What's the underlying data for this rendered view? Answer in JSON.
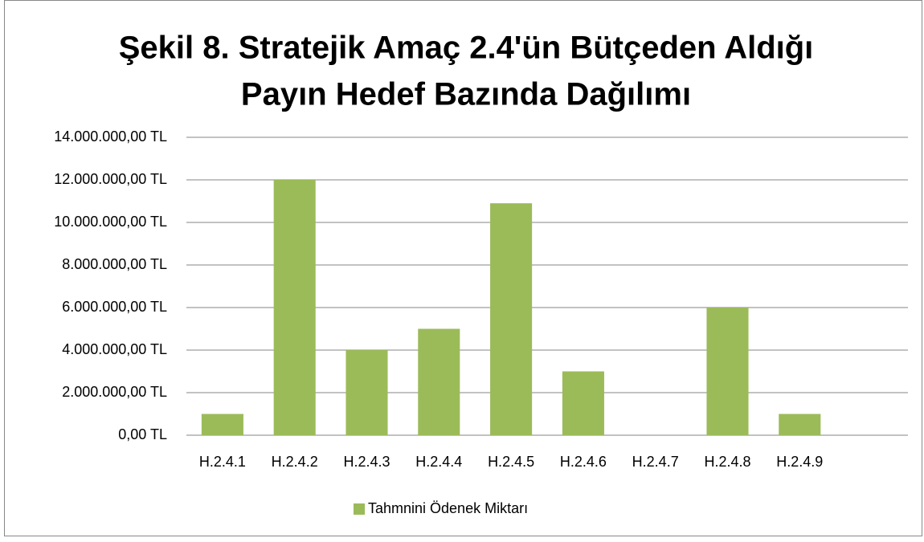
{
  "chart_data": {
    "type": "bar",
    "title": [
      "Şekil 8. Stratejik Amaç 2.4'ün Bütçeden Aldığı",
      "Payın Hedef Bazında Dağılımı"
    ],
    "categories": [
      "H.2.4.1",
      "H.2.4.2",
      "H.2.4.3",
      "H.2.4.4",
      "H.2.4.5",
      "H.2.4.6",
      "H.2.4.7",
      "H.2.4.8",
      "H.2.4.9",
      null
    ],
    "series": [
      {
        "name": "Tahmnini Ödenek Miktarı",
        "color": "#9bbb59",
        "values": [
          1000000,
          12000000,
          4000000,
          5000000,
          10900000,
          3000000,
          0,
          6000000,
          1000000,
          null
        ]
      }
    ],
    "ylim": [
      0,
      14000000
    ],
    "yticks": [
      {
        "value": 0,
        "label": "0,00 TL"
      },
      {
        "value": 2000000,
        "label": "2.000.000,00 TL"
      },
      {
        "value": 4000000,
        "label": "4.000.000,00 TL"
      },
      {
        "value": 6000000,
        "label": "6.000.000,00 TL"
      },
      {
        "value": 8000000,
        "label": "8.000.000,00 TL"
      },
      {
        "value": 10000000,
        "label": "10.000.000,00 TL"
      },
      {
        "value": 12000000,
        "label": "12.000.000,00 TL"
      },
      {
        "value": 14000000,
        "label": "14.000.000,00 TL"
      }
    ],
    "grid": true,
    "legend": "bottom"
  }
}
